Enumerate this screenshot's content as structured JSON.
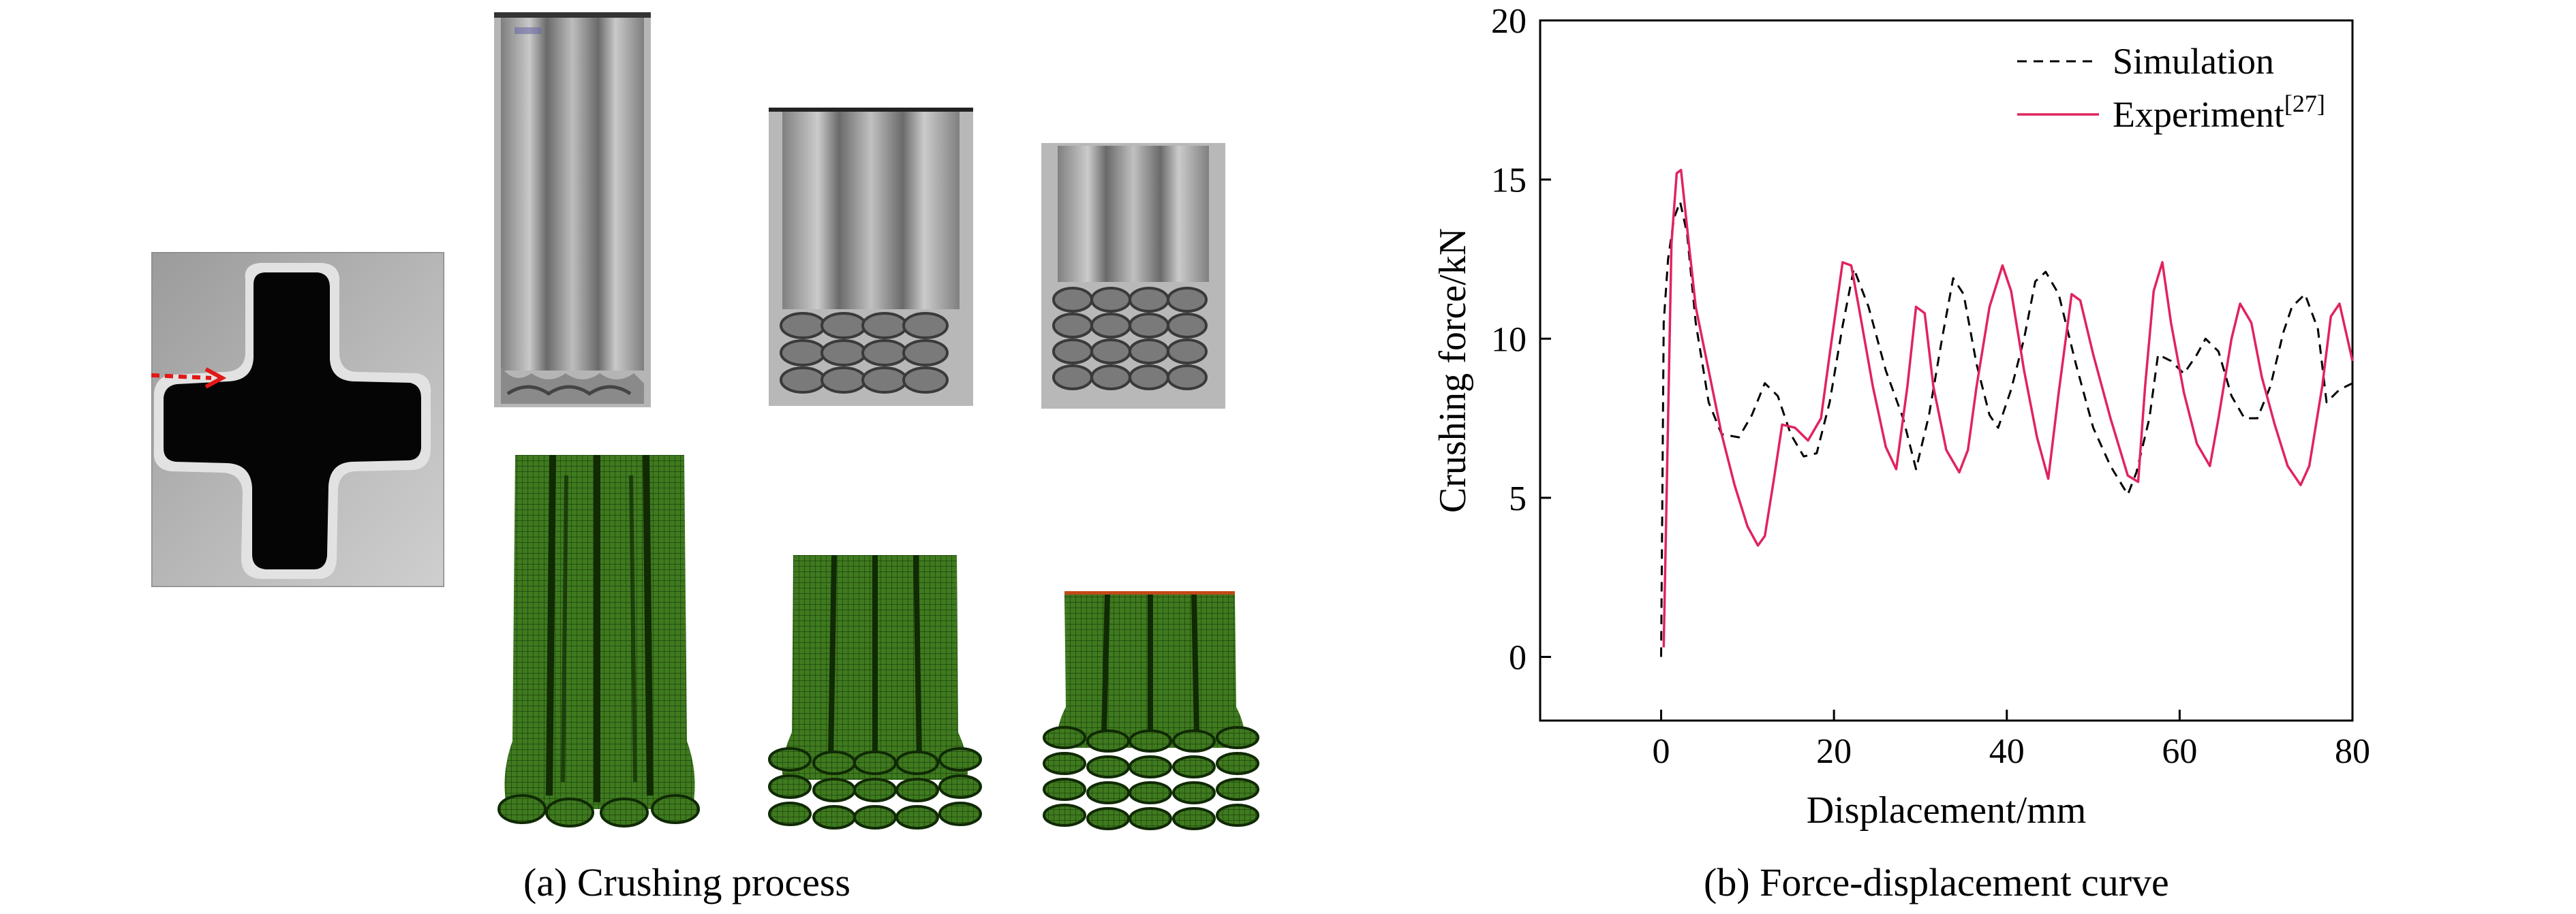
{
  "figure": {
    "caption_a": "(a) Crushing process",
    "caption_b": "(b) Force-displacement curve"
  },
  "colors": {
    "simulation": "#000000",
    "experiment": "#e0245e",
    "mesh_green": "#3f7a1f",
    "specimen_gray": "#9a9a9a"
  },
  "chart_data": {
    "type": "line",
    "title": "",
    "xlabel": "Displacement/mm",
    "ylabel": "Crushing force/kN",
    "xlim": [
      -14,
      80
    ],
    "ylim": [
      -2,
      20
    ],
    "xticks": [
      0,
      20,
      40,
      60,
      80
    ],
    "yticks": [
      0,
      5,
      10,
      15,
      20
    ],
    "grid": false,
    "legend_position": "top-right",
    "legend": [
      {
        "label": "Simulation",
        "style": "dashed"
      },
      {
        "label": "Experiment",
        "superscript": "[27]",
        "style": "solid"
      }
    ],
    "series": [
      {
        "name": "Simulation",
        "style": "dashed",
        "x": [
          0,
          0.3,
          0.8,
          1.5,
          2.2,
          3,
          4,
          5.5,
          7,
          9,
          10.5,
          12,
          13.5,
          15,
          16.5,
          18,
          19.5,
          21,
          22.3,
          24,
          26,
          28,
          29.5,
          31,
          32.5,
          33.8,
          35,
          36.5,
          38,
          39,
          40.5,
          42,
          43.3,
          44.5,
          46,
          48,
          50,
          52,
          54,
          55,
          56.5,
          57.5,
          59,
          60.5,
          62,
          63,
          64.5,
          66,
          67.5,
          69,
          70.5,
          72,
          73,
          74.5,
          76,
          77,
          78.5,
          80
        ],
        "y": [
          0,
          10.5,
          12.5,
          13.8,
          14.3,
          13.3,
          10.5,
          8,
          7,
          6.9,
          7.6,
          8.6,
          8.2,
          7,
          6.3,
          6.4,
          8,
          10.4,
          12.2,
          11,
          9,
          7.5,
          5.9,
          7.6,
          10,
          11.9,
          11.4,
          9.2,
          7.6,
          7.2,
          8.4,
          10,
          11.8,
          12.1,
          11.4,
          9.2,
          7.2,
          6,
          5.1,
          5.8,
          7.5,
          9.5,
          9.3,
          8.9,
          9.5,
          10,
          9.6,
          8.2,
          7.5,
          7.5,
          8.5,
          10.2,
          11,
          11.4,
          10.3,
          8,
          8.4,
          8.6
        ]
      },
      {
        "name": "Experiment",
        "style": "solid",
        "x": [
          0.3,
          0.7,
          1.2,
          1.8,
          2.3,
          3,
          4,
          5.5,
          7,
          8.5,
          10,
          11.2,
          12,
          13,
          14,
          15.5,
          17,
          18.5,
          19.5,
          21,
          22,
          23,
          24.5,
          26,
          27.2,
          28.5,
          29.5,
          30.5,
          31.5,
          33,
          34.5,
          35.5,
          36.5,
          38,
          39.5,
          40.5,
          42,
          43.5,
          44.8,
          46,
          47.5,
          48.5,
          50,
          52,
          54,
          55.2,
          56,
          57,
          58,
          59,
          60.5,
          62,
          63.5,
          64.5,
          66,
          67,
          68.3,
          69.5,
          71,
          72.5,
          74,
          75,
          76.5,
          77.5,
          78.5,
          80
        ],
        "y": [
          0.3,
          6,
          13,
          15.2,
          15.3,
          13.5,
          11,
          9,
          7,
          5.4,
          4.1,
          3.5,
          3.8,
          5.5,
          7.3,
          7.2,
          6.8,
          7.5,
          9.5,
          12.4,
          12.3,
          10.8,
          8.5,
          6.6,
          5.9,
          8.5,
          11,
          10.8,
          8.5,
          6.5,
          5.8,
          6.5,
          8.5,
          11,
          12.3,
          11.5,
          9,
          6.9,
          5.6,
          8.3,
          11.4,
          11.2,
          9.5,
          7.5,
          5.7,
          5.5,
          8.5,
          11.5,
          12.4,
          10.5,
          8.3,
          6.7,
          6,
          7.5,
          10,
          11.1,
          10.5,
          8.8,
          7.3,
          6,
          5.4,
          6,
          8.5,
          10.7,
          11.1,
          9.3
        ]
      }
    ]
  }
}
